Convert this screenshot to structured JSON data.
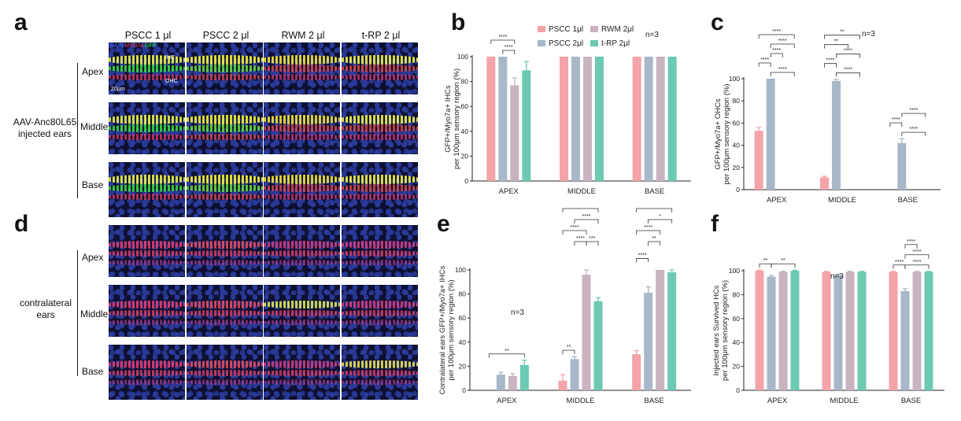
{
  "figure": {
    "panels": {
      "a": "a",
      "b": "b",
      "c": "c",
      "d": "d",
      "e": "e",
      "f": "f"
    },
    "image_grid": {
      "columns": [
        "PSCC 1 μl",
        "PSCC 2 μl",
        "RWM 2 μl",
        "t-RP 2 μl"
      ],
      "rows": [
        "Apex",
        "Middle",
        "Base"
      ],
      "injected_group_label": [
        "AAV-Anc80L65",
        "injected ears"
      ],
      "contralateral_group_label": [
        "contralateral",
        "ears"
      ],
      "channel_legend": [
        {
          "label": "DAPI",
          "color": "#4a6cff"
        },
        {
          "label": "MYO7a",
          "color": "#ff3b4a"
        },
        {
          "label": "GFP",
          "color": "#3bff5a"
        }
      ],
      "ihc_label": "IHC",
      "ohc_label": "OHC",
      "scale_label": "20μm"
    }
  },
  "colors": {
    "PSCC 1μl": "#f4a3a8",
    "PSCC 2μl": "#a9b8c8",
    "RWM 2μl": "#c9b3c0",
    "t-RP 2μl": "#6cc9b2"
  },
  "chart_data": [
    {
      "panel": "b",
      "type": "bar",
      "categories": [
        "APEX",
        "MIDDLE",
        "BASE"
      ],
      "series": [
        {
          "name": "PSCC 1μl",
          "values": [
            100,
            100,
            100
          ],
          "errors": [
            0,
            0,
            0
          ]
        },
        {
          "name": "PSCC 2μl",
          "values": [
            100,
            100,
            100
          ],
          "errors": [
            0,
            0,
            0
          ]
        },
        {
          "name": "RWM 2μl",
          "values": [
            77,
            100,
            100
          ],
          "errors": [
            6,
            0,
            0
          ]
        },
        {
          "name": "t-RP 2μl",
          "values": [
            89,
            100,
            100
          ],
          "errors": [
            7,
            0,
            0
          ]
        }
      ],
      "ylabel": [
        "GFP+/Myo7a+ IHCs",
        "per 100μm sensory region (%)"
      ],
      "ylim": [
        0,
        100
      ],
      "yticks": [
        0,
        20,
        40,
        60,
        80,
        100
      ],
      "legend": [
        "PSCC 1μl",
        "RWM 2μl",
        "PSCC 2μl",
        "t-RP 2μl"
      ],
      "n_label": "n=3",
      "legend_placement": "top",
      "significance": [
        {
          "category": 0,
          "from": 0,
          "to": 2,
          "label": "****",
          "level": 1
        },
        {
          "category": 0,
          "from": 1,
          "to": 2,
          "label": "****",
          "level": 0
        }
      ]
    },
    {
      "panel": "c",
      "type": "bar",
      "categories": [
        "APEX",
        "MIDDLE",
        "BASE"
      ],
      "series": [
        {
          "name": "PSCC 1μl",
          "values": [
            53,
            11,
            0
          ],
          "errors": [
            3,
            1,
            0
          ]
        },
        {
          "name": "PSCC 2μl",
          "values": [
            100,
            98,
            42
          ],
          "errors": [
            0,
            1.5,
            4
          ]
        },
        {
          "name": "RWM 2μl",
          "values": [
            0,
            0,
            0
          ],
          "errors": [
            0,
            0,
            0
          ]
        },
        {
          "name": "t-RP 2μl",
          "values": [
            0,
            0,
            0
          ],
          "errors": [
            0,
            0,
            0
          ]
        }
      ],
      "ylabel": [
        "GFP+/Myo7a+ OHCs",
        "per 100μm sensory region (%)"
      ],
      "ylim": [
        0,
        100
      ],
      "yticks": [
        0,
        20,
        40,
        60,
        80,
        100
      ],
      "n_label": "n=3",
      "significance": [
        {
          "category": 0,
          "from": 0,
          "to": 3,
          "label": "****",
          "level": 4
        },
        {
          "category": 0,
          "from": 1,
          "to": 3,
          "label": "****",
          "level": 3
        },
        {
          "category": 0,
          "from": 1,
          "to": 2,
          "label": "****",
          "level": 2
        },
        {
          "category": 0,
          "from": 0,
          "to": 1,
          "label": "****",
          "level": 1
        },
        {
          "category": 0,
          "from": 1,
          "to": 3,
          "label": "****",
          "level": 0
        },
        {
          "category": 1,
          "from": 0,
          "to": 3,
          "label": "**",
          "level": 4
        },
        {
          "category": 1,
          "from": 0,
          "to": 2,
          "label": "**",
          "level": 3
        },
        {
          "category": 1,
          "from": 1,
          "to": 3,
          "label": "****",
          "level": 2
        },
        {
          "category": 1,
          "from": 0,
          "to": 1,
          "label": "****",
          "level": 1
        },
        {
          "category": 1,
          "from": 1,
          "to": 3,
          "label": "****",
          "level": 0
        },
        {
          "category": 2,
          "from": 1,
          "to": 3,
          "label": "****",
          "level": 2
        },
        {
          "category": 2,
          "from": 0,
          "to": 1,
          "label": "****",
          "level": 1
        },
        {
          "category": 2,
          "from": 1,
          "to": 3,
          "label": "****",
          "level": 0
        }
      ]
    },
    {
      "panel": "e",
      "type": "bar",
      "categories": [
        "APEX",
        "MIDDLE",
        "BASE"
      ],
      "series": [
        {
          "name": "PSCC 1μl",
          "values": [
            0,
            8,
            30
          ],
          "errors": [
            0,
            5,
            3
          ]
        },
        {
          "name": "PSCC 2μl",
          "values": [
            13,
            26,
            81
          ],
          "errors": [
            2,
            2,
            5
          ]
        },
        {
          "name": "RWM 2μl",
          "values": [
            12,
            96,
            100
          ],
          "errors": [
            2,
            4,
            0
          ]
        },
        {
          "name": "t-RP 2μl",
          "values": [
            21,
            74,
            98
          ],
          "errors": [
            4,
            3,
            2
          ]
        }
      ],
      "ylabel": [
        "Contralateral ears GFP+/Myo7a+ IHCs",
        "per 100μm sensory region (%)"
      ],
      "ylim": [
        0,
        100
      ],
      "yticks": [
        0,
        20,
        40,
        60,
        80,
        100
      ],
      "n_label": "n=3",
      "significance": [
        {
          "category": 0,
          "from": 0,
          "to": 3,
          "label": "**",
          "level": 0
        },
        {
          "category": 1,
          "from": 0,
          "to": 3,
          "label": "****",
          "level": 5
        },
        {
          "category": 1,
          "from": 1,
          "to": 3,
          "label": "****",
          "level": 4
        },
        {
          "category": 1,
          "from": 0,
          "to": 2,
          "label": "****",
          "level": 3
        },
        {
          "category": 1,
          "from": 1,
          "to": 2,
          "label": "****",
          "level": 2
        },
        {
          "category": 1,
          "from": 2,
          "to": 3,
          "label": "***",
          "level": 2
        },
        {
          "category": 1,
          "from": 0,
          "to": 1,
          "label": "**",
          "level": 0
        },
        {
          "category": 2,
          "from": 0,
          "to": 3,
          "label": "****",
          "level": 5
        },
        {
          "category": 2,
          "from": 1,
          "to": 3,
          "label": "*",
          "level": 4
        },
        {
          "category": 2,
          "from": 0,
          "to": 2,
          "label": "****",
          "level": 3
        },
        {
          "category": 2,
          "from": 0,
          "to": 1,
          "label": "****",
          "level": 2
        },
        {
          "category": 2,
          "from": 1,
          "to": 2,
          "label": "**",
          "level": 2
        }
      ]
    },
    {
      "panel": "f",
      "type": "bar",
      "categories": [
        "APEX",
        "MIDDLE",
        "BASE"
      ],
      "series": [
        {
          "name": "PSCC 1μl",
          "values": [
            100,
            99,
            99
          ],
          "errors": [
            0.5,
            0.5,
            0.5
          ]
        },
        {
          "name": "PSCC 2μl",
          "values": [
            95,
            96,
            83
          ],
          "errors": [
            1,
            1,
            2
          ]
        },
        {
          "name": "RWM 2μl",
          "values": [
            99,
            99,
            99
          ],
          "errors": [
            0.5,
            0.5,
            0.5
          ]
        },
        {
          "name": "t-RP 2μl",
          "values": [
            100,
            99,
            99
          ],
          "errors": [
            0.5,
            0.5,
            0.5
          ]
        }
      ],
      "ylabel": [
        "Injected ears Survived HCs",
        "per 100μm sensory region (%)"
      ],
      "ylim": [
        0,
        100
      ],
      "yticks": [
        0,
        20,
        40,
        60,
        80,
        100
      ],
      "n_label": "n=3",
      "significance": [
        {
          "category": 0,
          "from": 0,
          "to": 1,
          "label": "**",
          "level": 0
        },
        {
          "category": 0,
          "from": 1,
          "to": 3,
          "label": "**",
          "level": 0
        },
        {
          "category": 2,
          "from": 1,
          "to": 2,
          "label": "****",
          "level": 2
        },
        {
          "category": 2,
          "from": 1,
          "to": 3,
          "label": "****",
          "level": 1
        },
        {
          "category": 2,
          "from": 0,
          "to": 1,
          "label": "****",
          "level": 0
        },
        {
          "category": 2,
          "from": 1,
          "to": 3,
          "label": "****",
          "level": 0
        }
      ]
    }
  ]
}
